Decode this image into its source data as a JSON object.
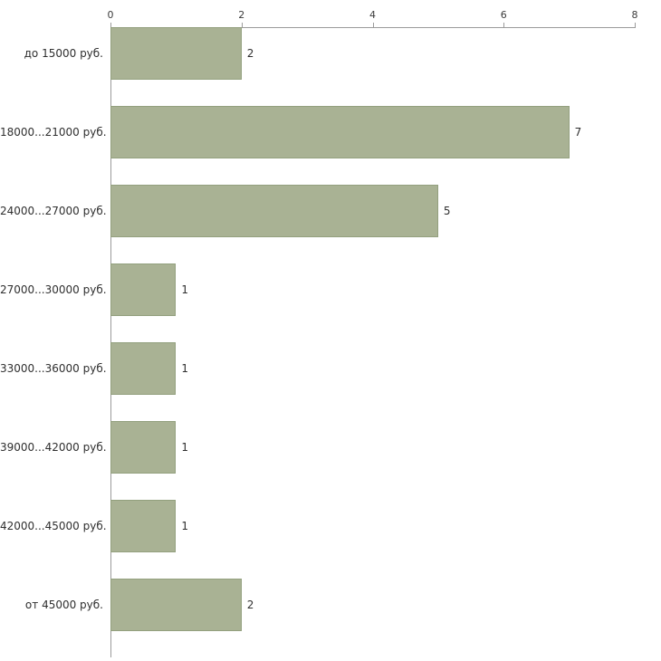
{
  "chart_data": {
    "type": "bar",
    "orientation": "horizontal",
    "title": "",
    "xlabel": "",
    "ylabel": "",
    "categories": [
      "до 15000 руб.",
      "18000...21000 руб.",
      "24000...27000 руб.",
      "27000...30000 руб.",
      "33000...36000 руб.",
      "39000...42000 руб.",
      "42000...45000 руб.",
      "от 45000 руб."
    ],
    "values": [
      2,
      7,
      5,
      1,
      1,
      1,
      1,
      2
    ],
    "xlim": [
      0,
      8
    ],
    "x_ticks": [
      0,
      2,
      4,
      6,
      8
    ],
    "grid": false,
    "legend": "none",
    "bar_color": "#a9b294",
    "bar_border_color": "#93a07e",
    "axis_color": "#9a9a9a",
    "text_color": "#2f2f2f"
  }
}
